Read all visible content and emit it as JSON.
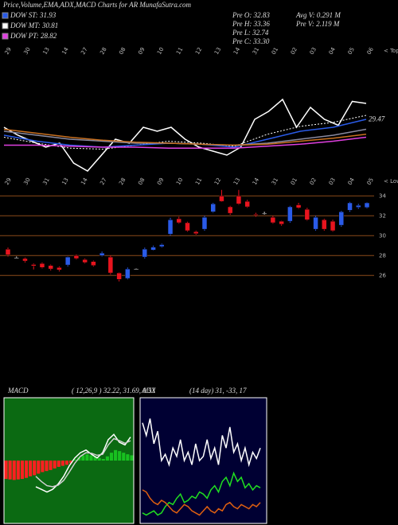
{
  "header": {
    "title": "Price,Volume,EMA,ADX,MACD Charts for AR MunafaSutra.com",
    "legend": [
      {
        "text": "DOW ST: 31.93",
        "color": "#2a5be8"
      },
      {
        "text": "DOW MT: 30.81",
        "color": "#ffffff"
      },
      {
        "text": "DOW PT: 28.82",
        "color": "#e040e0"
      }
    ],
    "prev": [
      "Pre   O: 32.83",
      "Pre   H: 33.36",
      "Pre   L: 32.74",
      "Pre   C: 33.30"
    ],
    "volume": [
      "Avg V: 0.291 M",
      "Pre   V: 2.119 M"
    ]
  },
  "chart_data": [
    {
      "type": "line",
      "ylim": [
        23.5,
        35.5
      ],
      "axis_note": "< Tops",
      "last_value": 29.47,
      "date_labels": [
        "29",
        "30",
        "13",
        "14",
        "27",
        "28",
        "08",
        "09",
        "10",
        "11",
        "12",
        "13",
        "14",
        "31",
        "01",
        "02",
        "03",
        "04",
        "05",
        "06"
      ],
      "series": [
        {
          "color": "#ffffff",
          "values": [
            28.7,
            27.9,
            27.3,
            26.7,
            27.1,
            25.1,
            24.3,
            25.9,
            27.5,
            27.1,
            28.7,
            28.3,
            28.7,
            27.5,
            26.7,
            26.3,
            25.9,
            26.7,
            29.5,
            30.3,
            31.5,
            28.7,
            30.7,
            29.5,
            28.9,
            31.3,
            31.1
          ]
        },
        {
          "color": "#ffffff",
          "dash": true,
          "values": [
            27.7,
            27.1,
            26.6,
            26.5,
            26.9,
            27.3,
            27.1,
            26.8,
            28.0,
            28.8,
            29.2,
            29.9
          ]
        },
        {
          "color": "#2a5be8",
          "values": [
            27.9,
            27.3,
            26.9,
            26.7,
            26.9,
            27.1,
            27.0,
            26.7,
            27.5,
            28.3,
            28.7,
            29.5
          ]
        },
        {
          "color": "#8a8aa0",
          "values": [
            28.3,
            27.9,
            27.5,
            27.3,
            27.1,
            27.1,
            27.0,
            26.9,
            27.1,
            27.5,
            27.9,
            28.5
          ]
        },
        {
          "color": "#c87020",
          "values": [
            28.5,
            28.1,
            27.7,
            27.4,
            27.2,
            27.1,
            27.0,
            26.9,
            27.0,
            27.3,
            27.6,
            28.0
          ]
        },
        {
          "color": "#e040e0",
          "values": [
            26.9,
            26.9,
            26.8,
            26.7,
            26.7,
            26.6,
            26.6,
            26.6,
            26.8,
            27.0,
            27.3,
            27.7
          ]
        }
      ]
    },
    {
      "type": "candlestick",
      "ylim": [
        24.9,
        34.5
      ],
      "yticks": [
        26,
        28,
        30,
        32,
        34
      ],
      "grid_color": "#8b4a1a",
      "up_color": "#2a5be8",
      "down_color": "#e8141e",
      "axis_note": "< Lows",
      "date_labels": [
        "29",
        "30",
        "31",
        "13",
        "14",
        "27",
        "28",
        "08",
        "09",
        "10",
        "11",
        "12",
        "13",
        "14",
        "31",
        "01",
        "02",
        "03",
        "04",
        "05"
      ],
      "open": [
        28.64,
        27.78,
        27.7,
        27.1,
        27.2,
        27.0,
        26.8,
        27.05,
        28.0,
        27.6,
        27.4,
        28.0,
        27.85,
        26.25,
        25.7,
        26.65,
        27.85,
        28.55,
        28.9,
        30.15,
        31.7,
        31.3,
        30.4,
        30.65,
        32.4,
        34.0,
        32.9,
        34.0,
        33.45,
        32.15,
        32.25,
        31.85,
        31.45,
        31.45,
        33.1,
        32.65,
        30.65,
        31.6,
        31.45,
        31.05,
        32.55,
        32.85,
        32.83
      ],
      "high": [
        28.8,
        27.9,
        27.8,
        27.2,
        27.3,
        27.1,
        26.9,
        27.9,
        28.1,
        27.7,
        27.5,
        28.4,
        28.0,
        26.3,
        26.8,
        26.7,
        28.8,
        29.0,
        29.2,
        31.8,
        31.9,
        31.4,
        30.5,
        32.0,
        33.3,
        34.6,
        33.0,
        34.6,
        33.6,
        32.3,
        32.4,
        32.0,
        31.5,
        33.0,
        33.3,
        32.8,
        32.0,
        31.7,
        31.6,
        32.5,
        33.4,
        33.2,
        33.36
      ],
      "low": [
        27.9,
        27.7,
        27.3,
        26.6,
        26.7,
        26.5,
        26.4,
        26.9,
        27.6,
        27.2,
        26.9,
        27.9,
        26.1,
        25.4,
        25.6,
        26.6,
        27.7,
        28.5,
        28.8,
        30.0,
        31.2,
        30.4,
        30.1,
        30.5,
        32.3,
        33.4,
        32.1,
        33.1,
        32.8,
        31.9,
        32.1,
        31.2,
        31.0,
        31.3,
        32.7,
        31.5,
        30.5,
        30.5,
        30.4,
        30.9,
        32.4,
        32.7,
        32.74
      ],
      "close": [
        28.08,
        27.78,
        27.45,
        26.95,
        26.8,
        26.65,
        26.55,
        27.85,
        27.7,
        27.3,
        27.0,
        28.25,
        26.25,
        25.6,
        26.65,
        26.65,
        28.65,
        28.85,
        29.1,
        31.6,
        31.3,
        30.5,
        30.2,
        31.85,
        33.2,
        33.45,
        32.25,
        33.2,
        32.9,
        32.05,
        32.25,
        31.3,
        31.15,
        32.9,
        32.8,
        31.6,
        31.85,
        30.65,
        30.5,
        32.4,
        33.3,
        33.05,
        33.3
      ]
    },
    {
      "type": "macd",
      "title": "MACD",
      "params": "( 12,26,9 ) 32.22, 31.69, 0.53",
      "ylim": [
        -1.2,
        1.2
      ],
      "background": "#0b6a12",
      "pos_color": "#18c020",
      "neg_color": "#ff2020",
      "histogram": [
        -0.35,
        -0.36,
        -0.37,
        -0.36,
        -0.35,
        -0.33,
        -0.3,
        -0.28,
        -0.25,
        -0.22,
        -0.2,
        -0.18,
        -0.15,
        -0.12,
        -0.1,
        -0.08,
        -0.05,
        0.02,
        0.06,
        0.1,
        0.12,
        0.1,
        0.08,
        0.05,
        0.03,
        0.08,
        0.15,
        0.2,
        0.18,
        0.15,
        0.12,
        0.1
      ],
      "series": [
        {
          "color": "#ffffff",
          "values": [
            -0.5,
            -0.55,
            -0.6,
            -0.55,
            -0.45,
            -0.3,
            -0.1,
            0.05,
            0.15,
            0.2,
            0.12,
            0.05,
            0.15,
            0.4,
            0.5,
            0.35,
            0.3,
            0.45
          ]
        },
        {
          "color": "#d0d0d0",
          "values": [
            -0.3,
            -0.4,
            -0.48,
            -0.5,
            -0.47,
            -0.38,
            -0.22,
            -0.05,
            0.08,
            0.15,
            0.14,
            0.1,
            0.12,
            0.3,
            0.42,
            0.38,
            0.33,
            0.38
          ]
        }
      ]
    },
    {
      "type": "adx",
      "title": "ADX",
      "params": "(14 day) 31, -33, 17",
      "ylim": [
        0,
        60
      ],
      "background": "#000033",
      "series": [
        {
          "color": "#ffffff",
          "values": [
            48,
            42,
            50,
            38,
            44,
            30,
            33,
            28,
            36,
            32,
            40,
            30,
            34,
            28,
            38,
            30,
            32,
            40,
            31,
            36,
            28,
            42,
            36,
            46,
            34,
            38,
            30,
            36,
            28,
            34,
            31,
            36
          ]
        },
        {
          "color": "#20e020",
          "values": [
            5,
            4,
            5,
            6,
            4,
            5,
            8,
            10,
            9,
            12,
            14,
            10,
            11,
            13,
            12,
            15,
            14,
            12,
            16,
            18,
            15,
            20,
            22,
            18,
            24,
            20,
            22,
            17,
            19,
            16,
            18,
            17
          ]
        },
        {
          "color": "#e06010",
          "values": [
            16,
            15,
            12,
            10,
            9,
            11,
            10,
            8,
            6,
            5,
            7,
            9,
            8,
            6,
            5,
            4,
            6,
            8,
            6,
            5,
            7,
            6,
            9,
            10,
            8,
            7,
            9,
            8,
            7,
            9,
            8,
            10
          ]
        }
      ]
    }
  ]
}
